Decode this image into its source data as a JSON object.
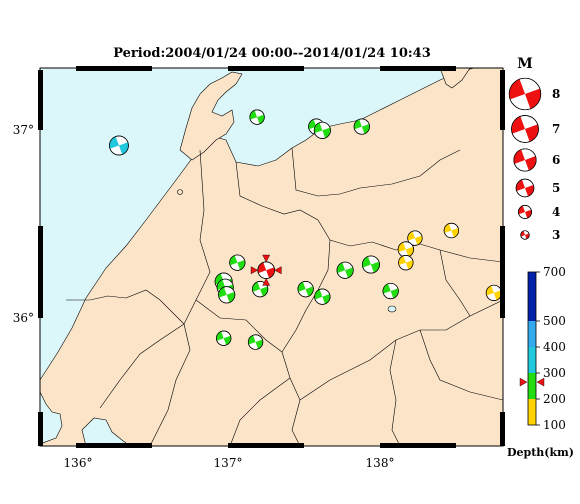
{
  "title": "Period:2004/01/24 00:00--2014/01/24 10:43",
  "colors": {
    "sea": "#dcf7fa",
    "land": "#fbe4c8",
    "red": "#ee1111",
    "green": "#22dd11",
    "yellow": "#ffd200",
    "cyan": "#22c8dd",
    "blue": "#0022aa",
    "lightblue": "#33aaee"
  },
  "axes": {
    "lon_ticks": [
      "136°",
      "137°",
      "138°"
    ],
    "lat_ticks": [
      "37°",
      "36°"
    ]
  },
  "magnitude_legend": {
    "header": "M",
    "labels": [
      "8",
      "7",
      "6",
      "5",
      "4",
      "3"
    ]
  },
  "depth_legend": {
    "title": "Depth(km)",
    "ticks": [
      "700",
      "500",
      "400",
      "300",
      "200",
      "100"
    ]
  },
  "events": [
    {
      "lon": 136.27,
      "lat": 36.92,
      "color": "cyan",
      "mag": 5.4
    },
    {
      "lon": 137.18,
      "lat": 37.07,
      "color": "green",
      "mag": 4.4
    },
    {
      "lon": 137.57,
      "lat": 37.02,
      "color": "green",
      "mag": 4.6
    },
    {
      "lon": 137.61,
      "lat": 37.0,
      "color": "green",
      "mag": 4.8
    },
    {
      "lon": 137.87,
      "lat": 37.02,
      "color": "green",
      "mag": 4.6
    },
    {
      "lon": 138.46,
      "lat": 36.47,
      "color": "yellow",
      "mag": 4.4
    },
    {
      "lon": 138.22,
      "lat": 36.43,
      "color": "yellow",
      "mag": 4.4
    },
    {
      "lon": 138.16,
      "lat": 36.37,
      "color": "yellow",
      "mag": 4.6
    },
    {
      "lon": 138.16,
      "lat": 36.3,
      "color": "yellow",
      "mag": 4.4
    },
    {
      "lon": 137.05,
      "lat": 36.3,
      "color": "green",
      "mag": 4.6
    },
    {
      "lon": 137.76,
      "lat": 36.26,
      "color": "green",
      "mag": 4.8
    },
    {
      "lon": 137.93,
      "lat": 36.29,
      "color": "green",
      "mag": 5.0
    },
    {
      "lon": 136.96,
      "lat": 36.2,
      "color": "green",
      "mag": 5.0
    },
    {
      "lon": 136.97,
      "lat": 36.17,
      "color": "green",
      "mag": 4.8
    },
    {
      "lon": 136.98,
      "lat": 36.13,
      "color": "green",
      "mag": 4.8
    },
    {
      "lon": 137.2,
      "lat": 36.16,
      "color": "green",
      "mag": 4.6
    },
    {
      "lon": 137.5,
      "lat": 36.16,
      "color": "green",
      "mag": 4.6
    },
    {
      "lon": 137.61,
      "lat": 36.12,
      "color": "green",
      "mag": 4.6
    },
    {
      "lon": 138.06,
      "lat": 36.15,
      "color": "green",
      "mag": 4.6
    },
    {
      "lon": 136.96,
      "lat": 35.9,
      "color": "green",
      "mag": 4.4
    },
    {
      "lon": 137.17,
      "lat": 35.88,
      "color": "green",
      "mag": 4.4
    },
    {
      "lon": 138.74,
      "lat": 36.14,
      "color": "yellow",
      "mag": 4.6
    }
  ],
  "latest_event": {
    "lon": 137.24,
    "lat": 36.26,
    "color": "red",
    "mag": 4.9
  },
  "depth_marker_km": 265
}
